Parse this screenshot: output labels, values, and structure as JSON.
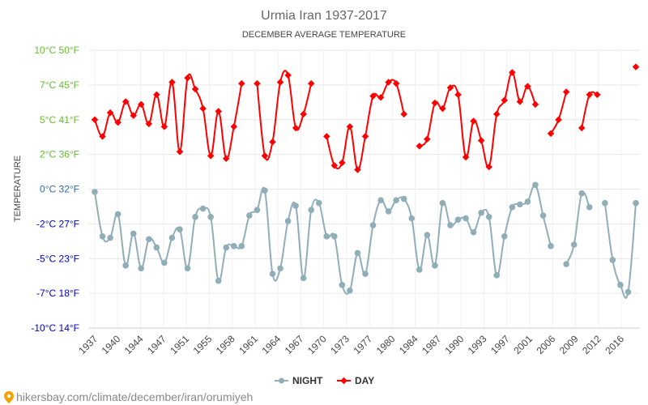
{
  "chart_data": {
    "type": "line",
    "title": "Urmia Iran 1937-2017",
    "subtitle": "DECEMBER AVERAGE TEMPERATURE",
    "ylabel": "TEMPERATURE",
    "xlabel": "",
    "ylim_c": [
      -10,
      10
    ],
    "y_ticks": [
      {
        "c": 10,
        "label": "10°C 50°F"
      },
      {
        "c": 7.5,
        "label": "7°C 45°F"
      },
      {
        "c": 5,
        "label": "5°C 41°F"
      },
      {
        "c": 2.5,
        "label": "2°C 36°F"
      },
      {
        "c": 0,
        "label": "0°C 32°F"
      },
      {
        "c": -2.5,
        "label": "-2°C 27°F"
      },
      {
        "c": -5,
        "label": "-5°C 23°F"
      },
      {
        "c": -7.5,
        "label": "-7°C 18°F"
      },
      {
        "c": -10,
        "label": "-10°C 14°F"
      }
    ],
    "x_tick_labels": [
      "1937",
      "1940",
      "1944",
      "1947",
      "1951",
      "1955",
      "1958",
      "1961",
      "1964",
      "1967",
      "1970",
      "1973",
      "1977",
      "1980",
      "1984",
      "1987",
      "1990",
      "1993",
      "1997",
      "2001",
      "2006",
      "2009",
      "2012",
      "2016"
    ],
    "grid": true,
    "legend_position": "bottom",
    "series": [
      {
        "name": "NIGHT",
        "color": "#90aeb8",
        "values": [
          [
            1937,
            -0.2
          ],
          [
            1938,
            -3.4
          ],
          [
            1939,
            -3.5
          ],
          [
            1940,
            -1.8
          ],
          [
            1941,
            -5.5
          ],
          [
            1942,
            -3.2
          ],
          [
            1943,
            -5.7
          ],
          [
            1944,
            -3.6
          ],
          [
            1945,
            -4.2
          ],
          [
            1946,
            -5.3
          ],
          [
            1947,
            -3.5
          ],
          [
            1948,
            -2.9
          ],
          [
            1949,
            -5.7
          ],
          [
            1950,
            -2.0
          ],
          [
            1951,
            -1.4
          ],
          [
            1952,
            -2.0
          ],
          [
            1953,
            -6.6
          ],
          [
            1954,
            -4.2
          ],
          [
            1955,
            -4.1
          ],
          [
            1956,
            -4.1
          ],
          [
            1957,
            -1.9
          ],
          [
            1958,
            -1.5
          ],
          [
            1959,
            -0.1
          ],
          [
            1960,
            -6.1
          ],
          [
            1961,
            -5.7
          ],
          [
            1962,
            -2.3
          ],
          [
            1963,
            -1.2
          ],
          [
            1964,
            -6.4
          ],
          [
            1965,
            -1.5
          ],
          [
            1966,
            -1.0
          ],
          [
            1967,
            -3.4
          ],
          [
            1968,
            -3.4
          ],
          [
            1969,
            -6.9
          ],
          [
            1970,
            -7.3
          ],
          [
            1971,
            -4.6
          ],
          [
            1972,
            -6.1
          ],
          [
            1973,
            -2.6
          ],
          [
            1974,
            -0.8
          ],
          [
            1975,
            -1.6
          ],
          [
            1976,
            -0.8
          ],
          [
            1977,
            -0.7
          ],
          [
            1978,
            -2.1
          ],
          [
            1979,
            -5.8
          ],
          [
            1980,
            -3.3
          ],
          [
            1981,
            -5.5
          ],
          [
            1982,
            -1.0
          ],
          [
            1983,
            -2.6
          ],
          [
            1984,
            -2.2
          ],
          [
            1985,
            -2.1
          ],
          [
            1986,
            -3.1
          ],
          [
            1987,
            -1.7
          ],
          [
            1988,
            -2.0
          ],
          [
            1989,
            -6.2
          ],
          [
            1990,
            -3.4
          ],
          [
            1991,
            -1.3
          ],
          [
            1992,
            -1.1
          ],
          [
            1993,
            -0.9
          ],
          [
            1994,
            0.3
          ],
          [
            1995,
            -1.9
          ],
          [
            1996,
            -4.1
          ],
          [
            null,
            null
          ],
          [
            1998,
            -5.4
          ],
          [
            1999,
            -4.0
          ],
          [
            2000,
            -0.3
          ],
          [
            2001,
            -1.3
          ],
          [
            null,
            null
          ],
          [
            2003,
            -1.0
          ],
          [
            2004,
            -5.1
          ],
          [
            2005,
            -6.9
          ],
          [
            2006,
            -7.4
          ],
          [
            2007,
            -1.0
          ]
        ]
      },
      {
        "name": "DAY",
        "color": "#ff0000",
        "values": [
          [
            1937,
            5.0
          ],
          [
            1938,
            3.8
          ],
          [
            1939,
            5.5
          ],
          [
            1940,
            4.8
          ],
          [
            1941,
            6.3
          ],
          [
            1942,
            5.3
          ],
          [
            1943,
            6.1
          ],
          [
            1944,
            4.7
          ],
          [
            1945,
            6.8
          ],
          [
            1946,
            4.5
          ],
          [
            1947,
            7.7
          ],
          [
            1948,
            2.7
          ],
          [
            1949,
            8.0
          ],
          [
            1950,
            7.2
          ],
          [
            1951,
            5.8
          ],
          [
            1952,
            2.4
          ],
          [
            1953,
            5.6
          ],
          [
            1954,
            2.2
          ],
          [
            1955,
            4.5
          ],
          [
            1956,
            7.6
          ],
          [
            null,
            null
          ],
          [
            1958,
            7.6
          ],
          [
            1959,
            2.4
          ],
          [
            1960,
            3.4
          ],
          [
            1961,
            7.7
          ],
          [
            1962,
            8.2
          ],
          [
            1963,
            4.4
          ],
          [
            1964,
            5.4
          ],
          [
            1965,
            7.6
          ],
          [
            null,
            null
          ],
          [
            1967,
            3.8
          ],
          [
            1968,
            1.7
          ],
          [
            1969,
            1.9
          ],
          [
            1970,
            4.5
          ],
          [
            1971,
            1.4
          ],
          [
            1972,
            3.8
          ],
          [
            1973,
            6.7
          ],
          [
            1974,
            6.6
          ],
          [
            1975,
            7.7
          ],
          [
            1976,
            7.6
          ],
          [
            1977,
            5.4
          ],
          [
            null,
            null
          ],
          [
            1979,
            3.1
          ],
          [
            1980,
            3.6
          ],
          [
            1981,
            6.2
          ],
          [
            1982,
            5.8
          ],
          [
            1983,
            7.3
          ],
          [
            1984,
            6.8
          ],
          [
            1985,
            2.3
          ],
          [
            1986,
            4.9
          ],
          [
            1987,
            3.5
          ],
          [
            1988,
            1.6
          ],
          [
            1989,
            5.4
          ],
          [
            1990,
            6.4
          ],
          [
            1991,
            8.4
          ],
          [
            1992,
            6.3
          ],
          [
            1993,
            7.4
          ],
          [
            1994,
            6.1
          ],
          [
            null,
            null
          ],
          [
            1996,
            4.0
          ],
          [
            1997,
            5.0
          ],
          [
            1998,
            7.0
          ],
          [
            null,
            null
          ],
          [
            2000,
            4.4
          ],
          [
            2001,
            6.8
          ],
          [
            2002,
            6.8
          ],
          [
            null,
            null
          ],
          [
            2007,
            8.8
          ]
        ]
      }
    ]
  },
  "legend": {
    "night_label": "NIGHT",
    "day_label": "DAY"
  },
  "source_text": "hikersbay.com/climate/december/iran/orumiyeh",
  "colors": {
    "day": "#ff0000",
    "night": "#90aeb8",
    "y_positive": "#66bb33",
    "y_zero": "#3366aa",
    "y_negative": "#0000cc",
    "grid": "#e6e6e6"
  }
}
